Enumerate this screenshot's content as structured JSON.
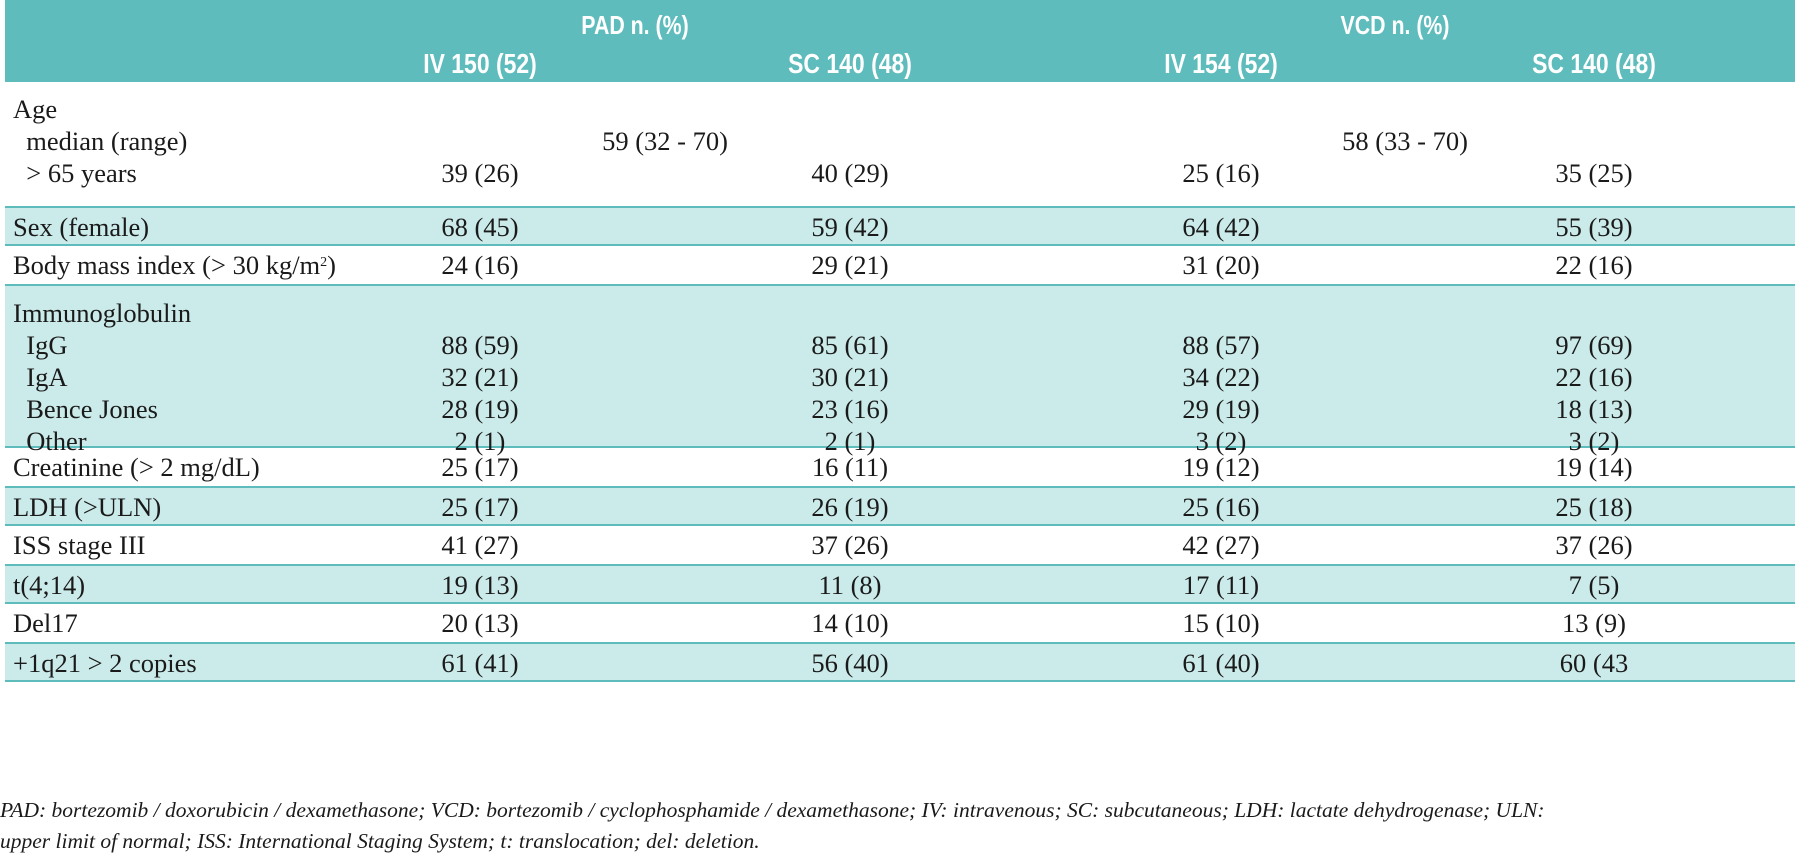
{
  "table": {
    "groups": [
      {
        "label": "PAD n. (%)"
      },
      {
        "label": "VCD n. (%)"
      }
    ],
    "subheaders": [
      "IV 150 (52)",
      "SC 140 (48)",
      "IV 154 (52)",
      "SC 140 (48)"
    ],
    "rows": [
      {
        "teal": false,
        "lines": [
          {
            "label": "Age",
            "values": [
              "",
              "",
              "",
              ""
            ]
          },
          {
            "label": "  median (range)",
            "span_values": [
              "59 (32 - 70)",
              "58 (33 - 70)"
            ]
          },
          {
            "label": "  > 65 years",
            "values": [
              "39 (26)",
              "40 (29)",
              "25 (16)",
              "35 (25)"
            ]
          }
        ]
      },
      {
        "teal": true,
        "lines": [
          {
            "label": "Sex (female)",
            "values": [
              "68 (45)",
              "59 (42)",
              "64 (42)",
              "55 (39)"
            ]
          }
        ]
      },
      {
        "teal": false,
        "lines": [
          {
            "label": "Body mass index (> 30 kg/m",
            "sup": "2",
            "label_end": ")",
            "values": [
              "24 (16)",
              "29 (21)",
              "31 (20)",
              "22 (16)"
            ]
          }
        ]
      },
      {
        "teal": true,
        "lines": [
          {
            "label": "Immunoglobulin",
            "values": [
              "",
              "",
              "",
              ""
            ]
          },
          {
            "label": "  IgG",
            "values": [
              "88 (59)",
              "85 (61)",
              "88 (57)",
              "97 (69)"
            ]
          },
          {
            "label": "  IgA",
            "values": [
              "32 (21)",
              "30 (21)",
              "34 (22)",
              "22 (16)"
            ]
          },
          {
            "label": "  Bence Jones",
            "values": [
              "28 (19)",
              "23 (16)",
              "29 (19)",
              "18 (13)"
            ]
          },
          {
            "label": "  Other",
            "values": [
              "2 (1)",
              "2 (1)",
              "3 (2)",
              "3 (2)"
            ]
          }
        ]
      },
      {
        "teal": false,
        "lines": [
          {
            "label": "Creatinine (> 2 mg/dL)",
            "values": [
              "25 (17)",
              "16 (11)",
              "19 (12)",
              "19 (14)"
            ]
          }
        ]
      },
      {
        "teal": true,
        "lines": [
          {
            "label": "LDH (>ULN)",
            "values": [
              "25 (17)",
              "26 (19)",
              "25 (16)",
              "25 (18)"
            ]
          }
        ]
      },
      {
        "teal": false,
        "lines": [
          {
            "label": "ISS stage III",
            "values": [
              "41 (27)",
              "37 (26)",
              "42 (27)",
              "37 (26)"
            ]
          }
        ]
      },
      {
        "teal": true,
        "lines": [
          {
            "label": "t(4;14)",
            "values": [
              "19 (13)",
              "11 (8)",
              "17 (11)",
              "7 (5)"
            ]
          }
        ]
      },
      {
        "teal": false,
        "lines": [
          {
            "label": "Del17",
            "values": [
              "20 (13)",
              "14 (10)",
              "15 (10)",
              "13 (9)"
            ]
          }
        ]
      },
      {
        "teal": true,
        "lines": [
          {
            "label": "+1q21 > 2 copies",
            "values": [
              "61 (41)",
              "56 (40)",
              "61 (40)",
              "60 (43"
            ]
          }
        ]
      }
    ],
    "footnote": [
      "PAD: bortezomib / doxorubicin / dexamethasone; VCD: bortezomib / cyclophosphamide / dexamethasone; IV: intravenous; SC: subcutaneous; LDH: lactate dehydrogenase; ULN:",
      "upper limit of normal; ISS: International Staging System; t: translocation; del: deletion."
    ]
  },
  "colors": {
    "header_bg": "#5fbcbd",
    "band_bg": "#cbeaea",
    "rule": "#5fbcbd"
  }
}
